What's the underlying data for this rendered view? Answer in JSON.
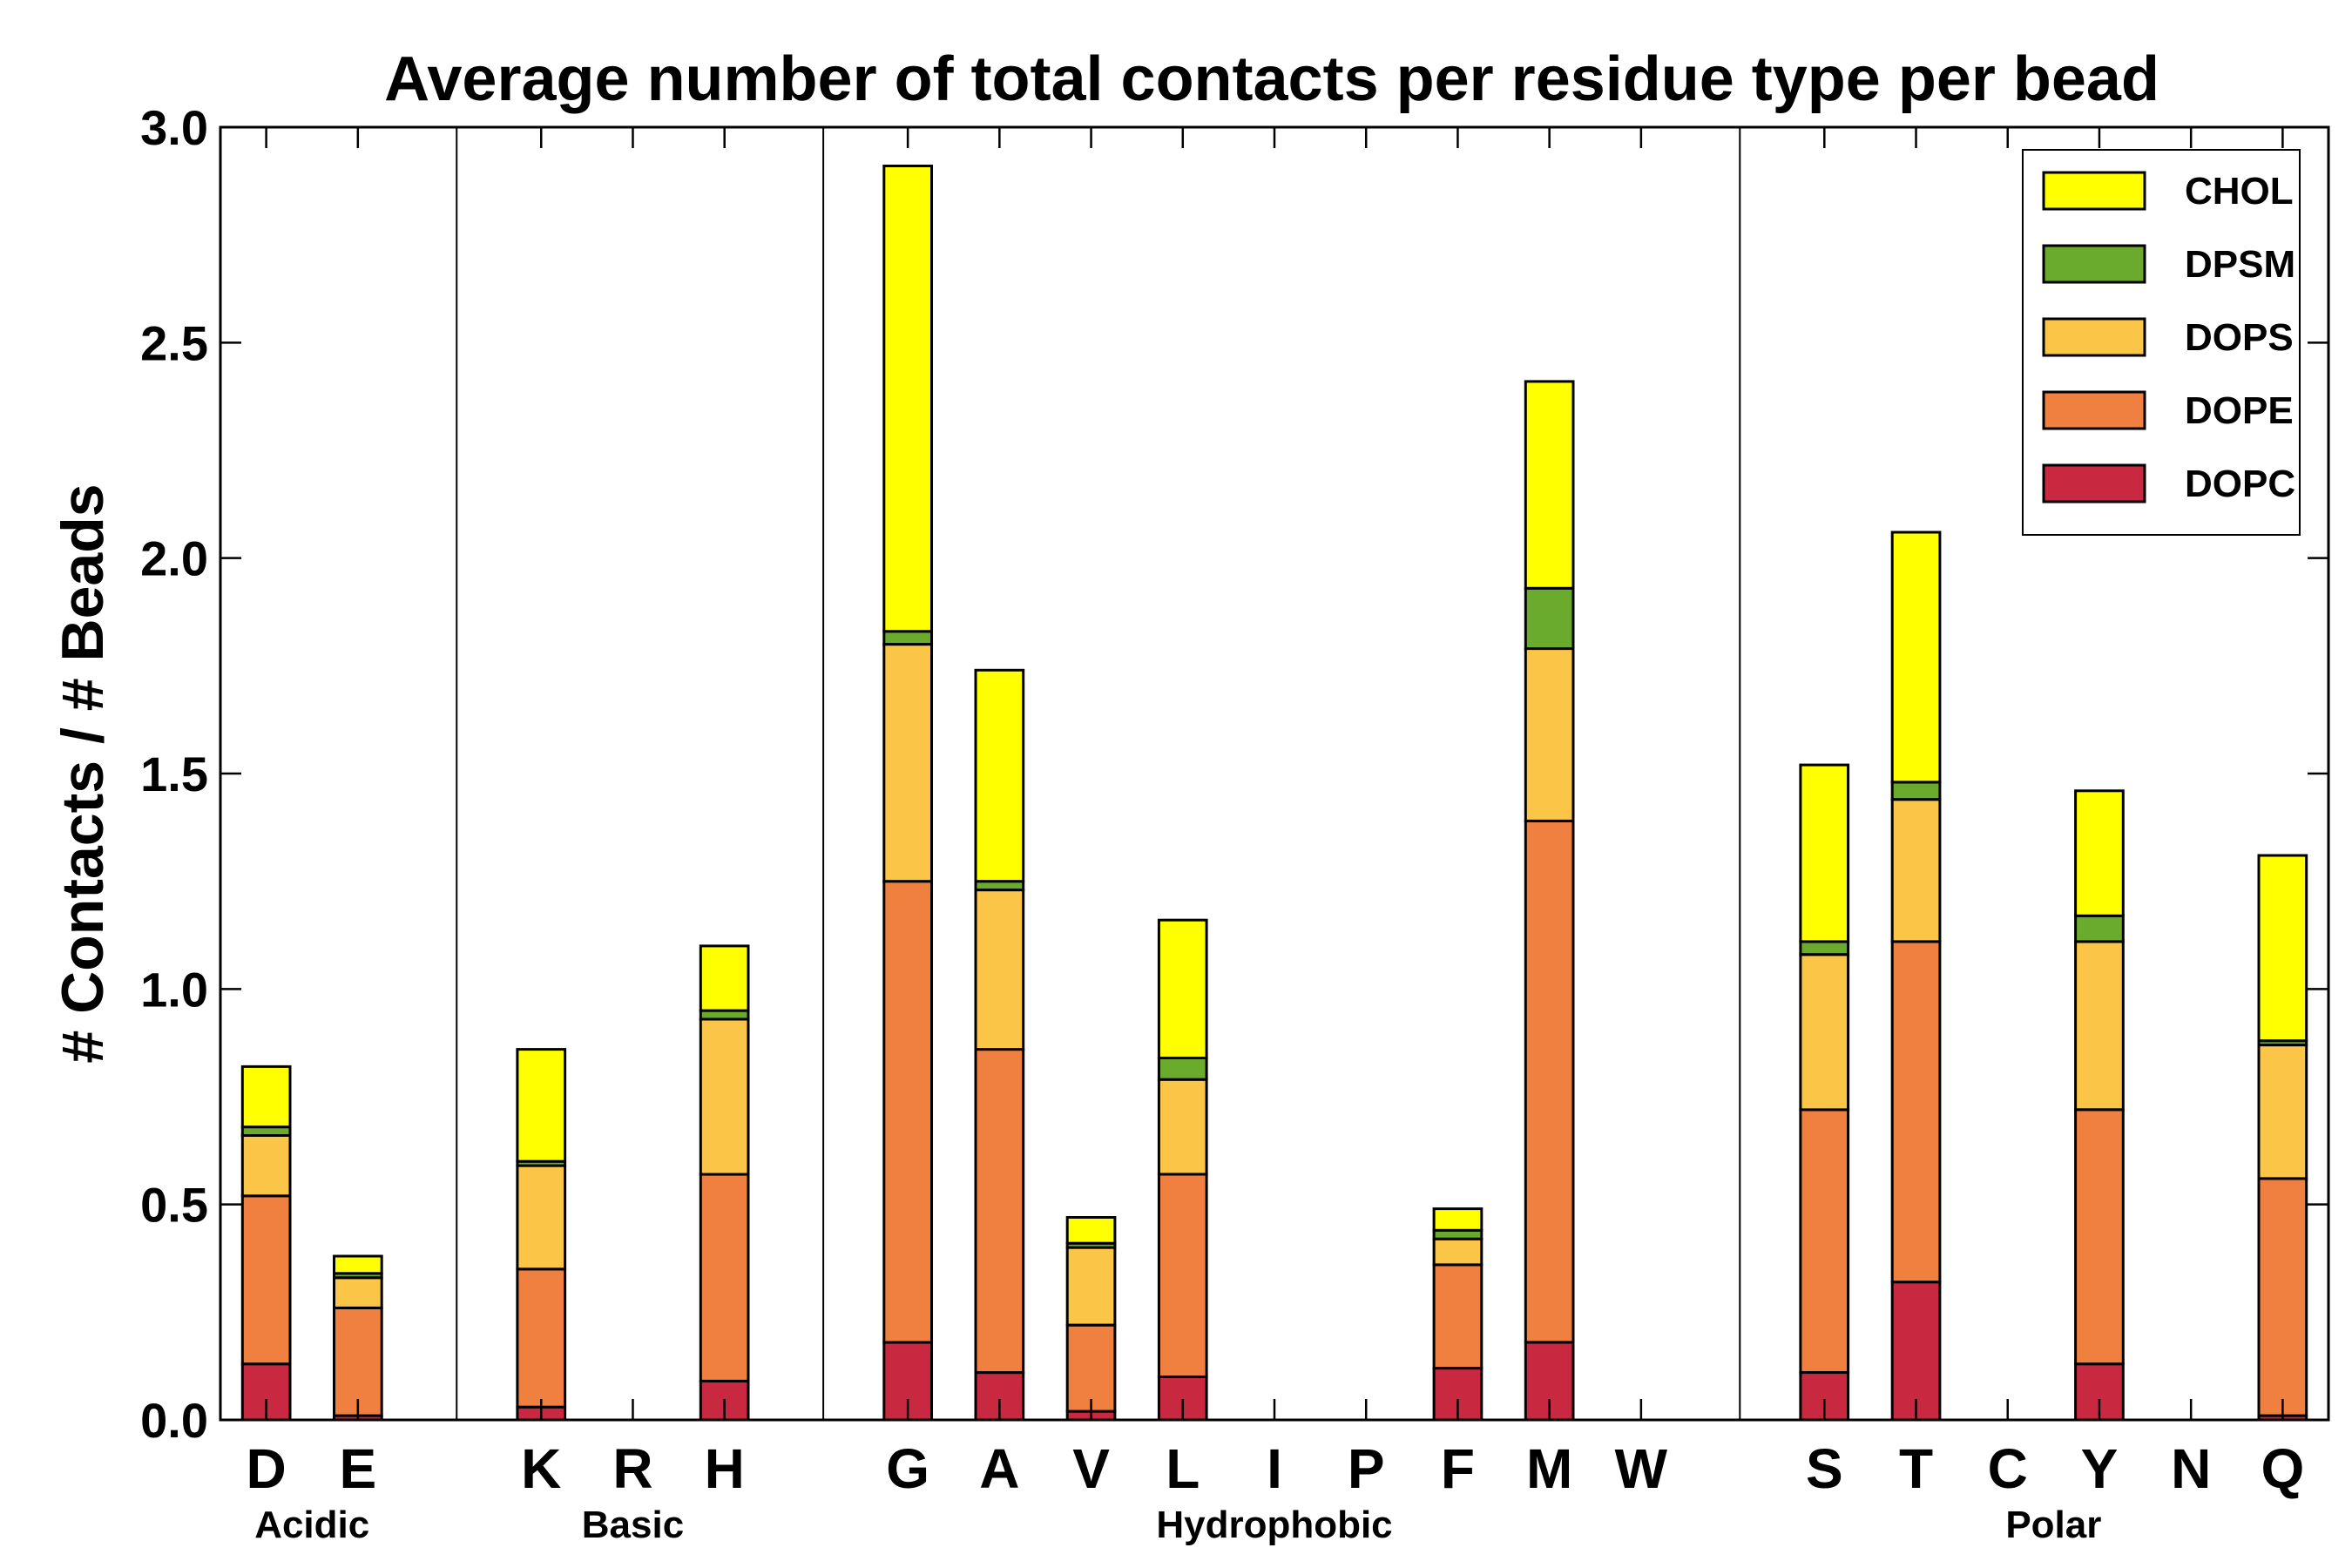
{
  "chart_data": {
    "type": "bar",
    "stacked": true,
    "title": "Average number of total contacts per residue type per bead",
    "xlabel": "",
    "ylabel": "# Contacts / # Beads",
    "ylim": [
      0,
      3.0
    ],
    "yticks": [
      "0.0",
      "0.5",
      "1.0",
      "1.5",
      "2.0",
      "2.5",
      "3.0"
    ],
    "legend_position": "top-right",
    "categories": [
      "D",
      "E",
      "",
      "K",
      "R",
      "H",
      "",
      "G",
      "A",
      "V",
      "L",
      "I",
      "P",
      "F",
      "M",
      "W",
      "",
      "S",
      "T",
      "C",
      "Y",
      "N",
      "Q"
    ],
    "groups": [
      {
        "name": "Acidic",
        "from": 0,
        "to": 1
      },
      {
        "name": "Basic",
        "from": 3,
        "to": 5
      },
      {
        "name": "Hydrophobic",
        "from": 7,
        "to": 15
      },
      {
        "name": "Polar",
        "from": 17,
        "to": 22
      }
    ],
    "series": [
      {
        "name": "DOPC",
        "color": "#c82840",
        "values": [
          0.13,
          0.01,
          0,
          0.03,
          0,
          0.09,
          0,
          0.18,
          0.11,
          0.02,
          0.1,
          0,
          0,
          0.12,
          0.18,
          0,
          0,
          0.11,
          0.32,
          0,
          0.13,
          0,
          0.01
        ]
      },
      {
        "name": "DOPE",
        "color": "#f08040",
        "values": [
          0.39,
          0.25,
          0,
          0.32,
          0,
          0.48,
          0,
          1.07,
          0.75,
          0.2,
          0.47,
          0,
          0,
          0.24,
          1.21,
          0,
          0,
          0.61,
          0.79,
          0,
          0.59,
          0,
          0.55
        ]
      },
      {
        "name": "DOPS",
        "color": "#fbc647",
        "values": [
          0.14,
          0.07,
          0,
          0.24,
          0,
          0.36,
          0,
          0.55,
          0.37,
          0.18,
          0.22,
          0,
          0,
          0.06,
          0.4,
          0,
          0,
          0.36,
          0.33,
          0,
          0.39,
          0,
          0.31
        ]
      },
      {
        "name": "DPSM",
        "color": "#6aaa2c",
        "values": [
          0.02,
          0.01,
          0,
          0.01,
          0,
          0.02,
          0,
          0.03,
          0.02,
          0.01,
          0.05,
          0,
          0,
          0.02,
          0.14,
          0,
          0,
          0.03,
          0.04,
          0,
          0.06,
          0,
          0.01
        ]
      },
      {
        "name": "CHOL",
        "color": "#ffff00",
        "values": [
          0.14,
          0.04,
          0,
          0.26,
          0,
          0.15,
          0,
          1.08,
          0.49,
          0.06,
          0.32,
          0,
          0,
          0.05,
          0.48,
          0,
          0,
          0.41,
          0.58,
          0,
          0.29,
          0,
          0.43
        ]
      }
    ],
    "legend_order": [
      "CHOL",
      "DPSM",
      "DOPS",
      "DOPE",
      "DOPC"
    ],
    "group_separators_after": [
      2,
      6,
      16
    ]
  }
}
